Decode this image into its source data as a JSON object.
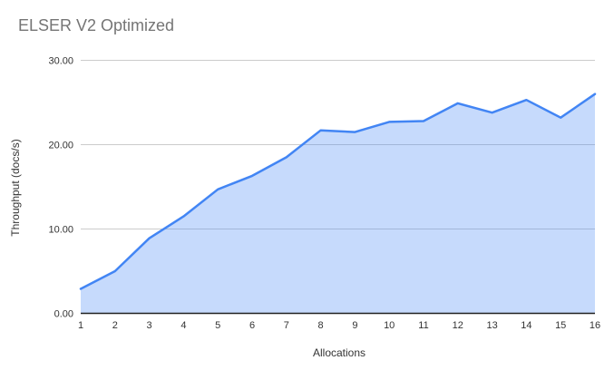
{
  "title": "ELSER V2 Optimized",
  "chart_data": {
    "type": "area",
    "title": "ELSER V2 Optimized",
    "xlabel": "Allocations",
    "ylabel": "Throughput (docs/s)",
    "x": [
      1,
      2,
      3,
      4,
      5,
      6,
      7,
      8,
      9,
      10,
      11,
      12,
      13,
      14,
      15,
      16
    ],
    "series": [
      {
        "name": "Throughput (docs/s)",
        "values": [
          2.9,
          5.0,
          8.9,
          11.5,
          14.7,
          16.3,
          18.5,
          21.7,
          21.5,
          22.7,
          22.8,
          24.9,
          23.8,
          25.3,
          23.2,
          26.0
        ]
      }
    ],
    "ylim": [
      0,
      30
    ],
    "y_ticks": {
      "values": [
        0,
        10,
        20,
        30
      ],
      "labels": [
        "0.00",
        "10.00",
        "20.00",
        "30.00"
      ]
    },
    "grid": true,
    "legend": "none",
    "colors": {
      "line": "#4285f4",
      "fill": "rgba(66,133,244,0.30)",
      "gridline": "#cccccc",
      "axis_line": "#212121",
      "title": "#757575",
      "tick_label": "#333333",
      "axis_title": "#333333",
      "background": "#ffffff"
    }
  }
}
